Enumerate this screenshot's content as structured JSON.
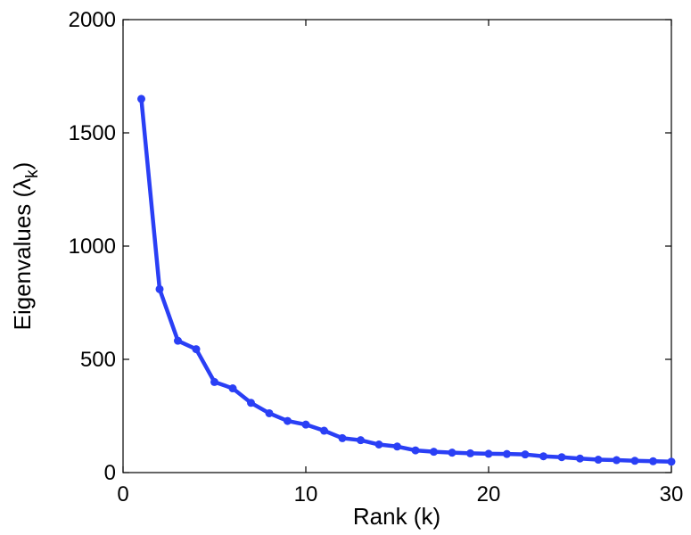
{
  "chart_data": {
    "type": "line",
    "xlabel": "Rank (k)",
    "ylabel_main": "Eigenvalues (λ",
    "ylabel_sub": "k",
    "ylabel_end": ")",
    "xlim": [
      0,
      30
    ],
    "ylim": [
      0,
      2000
    ],
    "xticks": [
      0,
      10,
      20,
      30
    ],
    "yticks": [
      0,
      500,
      1000,
      1500,
      2000
    ],
    "grid": false,
    "line_color": "#2a3ff5",
    "series": [
      {
        "x": [
          1,
          2,
          3,
          4,
          5,
          6,
          7,
          8,
          9,
          10,
          11,
          12,
          13,
          14,
          15,
          16,
          17,
          18,
          19,
          20,
          21,
          22,
          23,
          24,
          25,
          26,
          27,
          28,
          29,
          30
        ],
        "values": [
          1650,
          810,
          582,
          545,
          400,
          372,
          308,
          262,
          228,
          212,
          185,
          152,
          143,
          124,
          115,
          98,
          92,
          88,
          85,
          83,
          82,
          80,
          72,
          68,
          62,
          57,
          55,
          52,
          50,
          48
        ]
      }
    ]
  }
}
